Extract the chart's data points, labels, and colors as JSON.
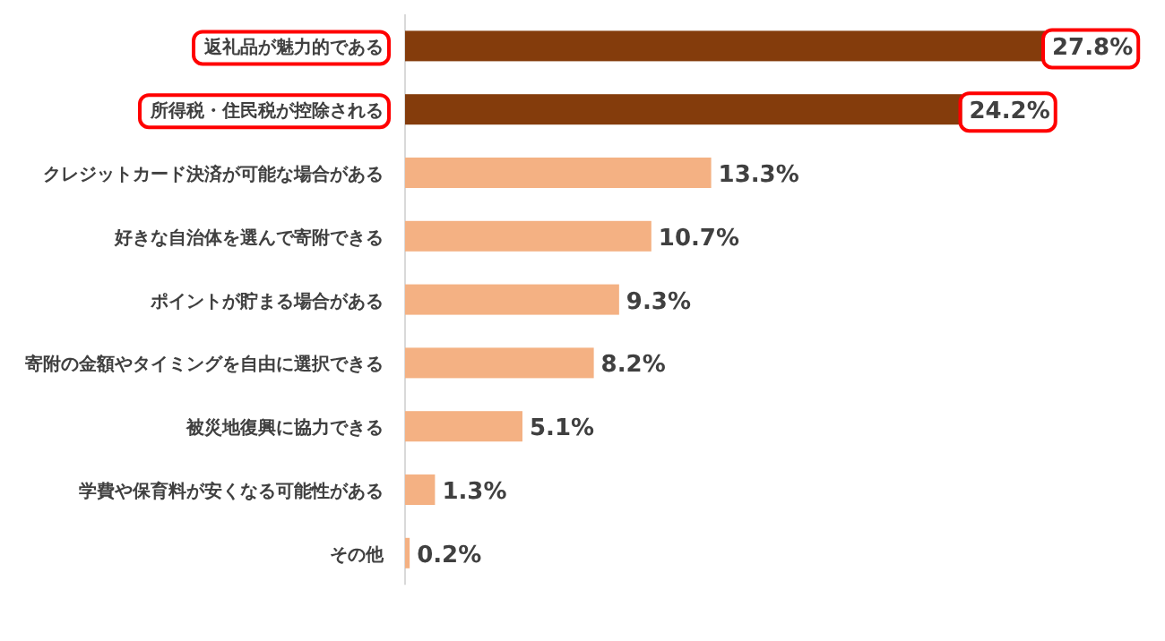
{
  "chart_data": {
    "type": "bar",
    "orientation": "horizontal",
    "categories": [
      "返礼品が魅力的である",
      "所得税・住民税が控除される",
      "クレジットカード決済が可能な場合がある",
      "好きな自治体を選んで寄附できる",
      "ポイントが貯まる場合がある",
      "寄附の金額やタイミングを自由に選択できる",
      "被災地復興に協力できる",
      "学費や保育料が安くなる可能性がある",
      "その他"
    ],
    "values": [
      27.8,
      24.2,
      13.3,
      10.7,
      9.3,
      8.2,
      5.1,
      1.3,
      0.2
    ],
    "value_labels": [
      "27.8%",
      "24.2%",
      "13.3%",
      "10.7%",
      "9.3%",
      "8.2%",
      "5.1%",
      "1.3%",
      "0.2%"
    ],
    "colors": [
      "#843c0c",
      "#843c0c",
      "#f4b183",
      "#f4b183",
      "#f4b183",
      "#f4b183",
      "#f4b183",
      "#f4b183",
      "#f4b183"
    ]
  }
}
